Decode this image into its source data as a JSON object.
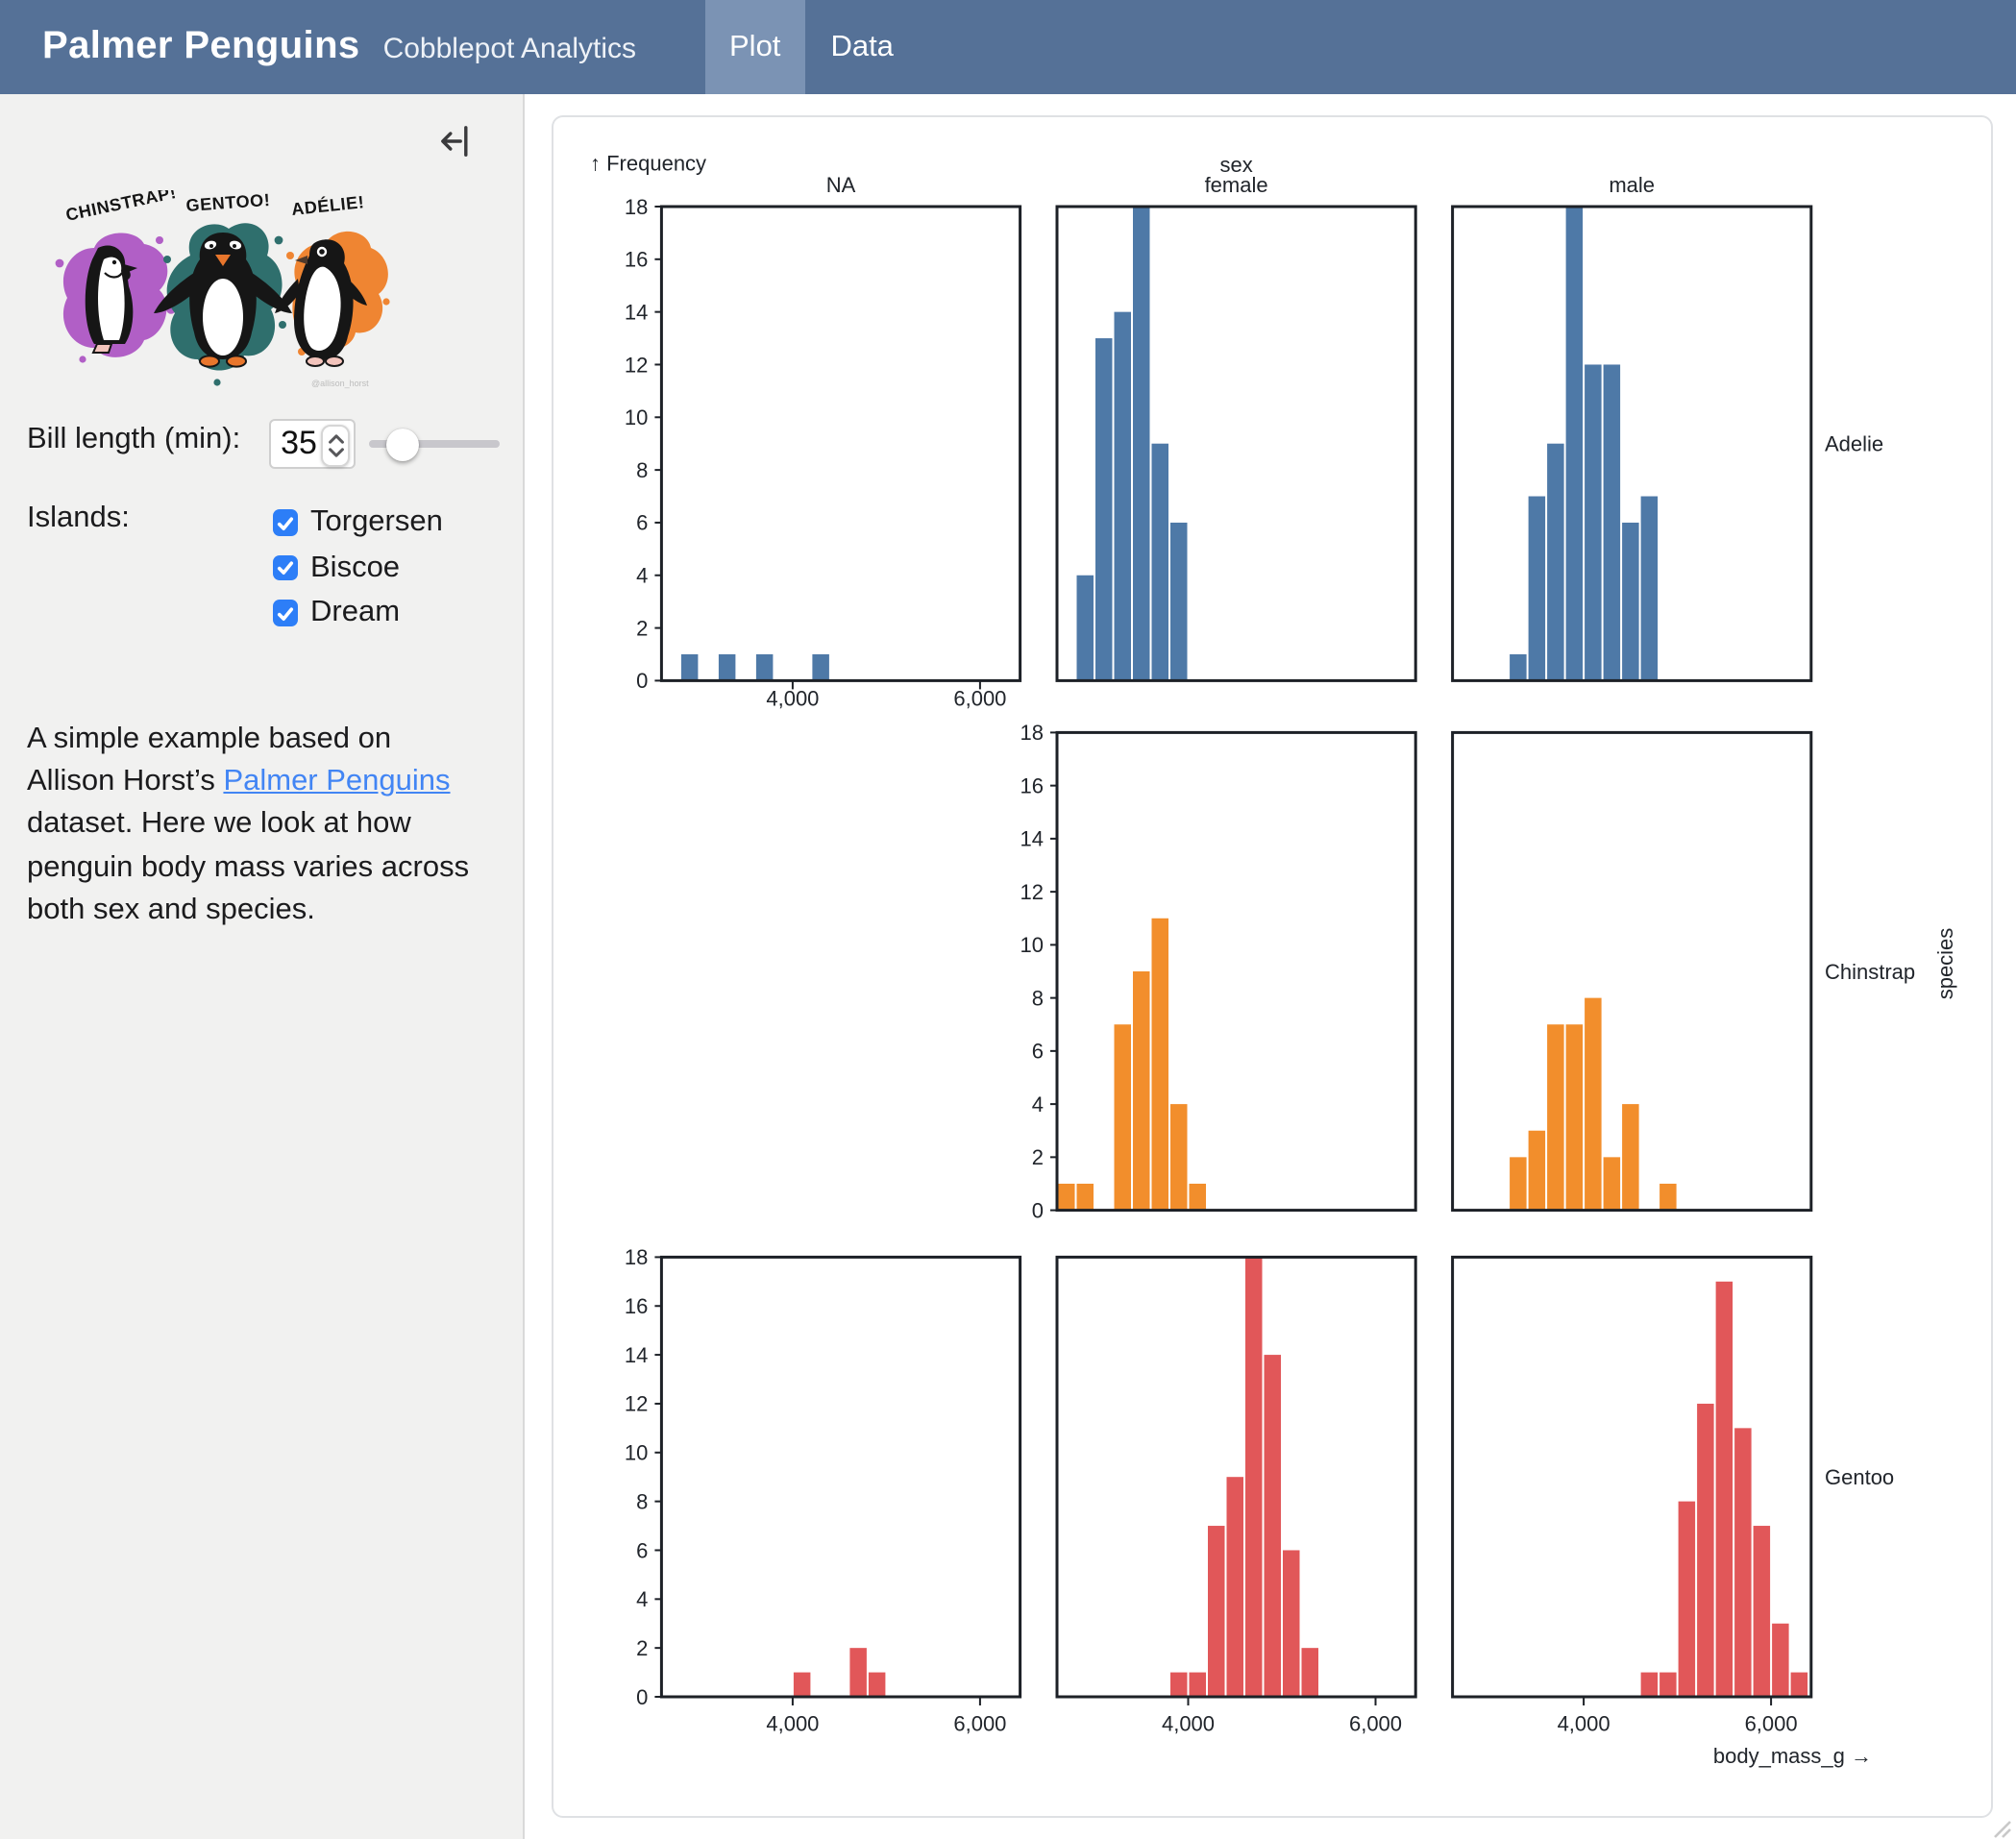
{
  "header": {
    "title": "Palmer Penguins",
    "subtitle": "Cobblepot Analytics",
    "tabs": [
      {
        "label": "Plot",
        "active": true
      },
      {
        "label": "Data",
        "active": false
      }
    ]
  },
  "sidebar": {
    "artwork_labels": [
      "CHINSTRAP!",
      "GENTOO!",
      "ADÉLIE!"
    ],
    "artwork_signature": "@allison_horst",
    "bill_length": {
      "label": "Bill length (min):",
      "value": "35"
    },
    "islands": {
      "label": "Islands:",
      "options": [
        {
          "label": "Torgersen",
          "checked": true
        },
        {
          "label": "Biscoe",
          "checked": true
        },
        {
          "label": "Dream",
          "checked": true
        }
      ]
    },
    "description": {
      "before": "A simple example based on Allison Horst’s ",
      "link": "Palmer Penguins",
      "after": " dataset. Here we look at how penguin body mass varies across both sex and species."
    }
  },
  "colors": {
    "header_bg": "#557197",
    "tab_active_bg": "#7b93b4",
    "check_blue": "#2d7ef7",
    "link_blue": "#4285f4",
    "adelie": "#4e79a7",
    "chinstrap": "#f28e2c",
    "gentoo": "#e15759"
  },
  "chart_data": {
    "type": "bar",
    "subtype": "faceted-histogram",
    "x_label": "body_mass_g →",
    "y_label": "↑ Frequency",
    "fx_label": "sex",
    "fy_label": "species",
    "columns": [
      "NA",
      "female",
      "male"
    ],
    "rows": [
      "Adelie",
      "Chinstrap",
      "Gentoo"
    ],
    "bin_width": 200,
    "x_domain": [
      2600,
      6427
    ],
    "y_domain": [
      0,
      18
    ],
    "x_ticks": [
      4000,
      6000
    ],
    "y_ticks": [
      0,
      2,
      4,
      6,
      8,
      10,
      12,
      14,
      16,
      18
    ],
    "facets": [
      {
        "species": "Adelie",
        "sex": "NA",
        "bins": {
          "2800": 1,
          "3200": 1,
          "3600": 1,
          "4200": 1
        }
      },
      {
        "species": "Adelie",
        "sex": "female",
        "bins": {
          "2800": 4,
          "3000": 13,
          "3200": 14,
          "3400": 18,
          "3600": 9,
          "3800": 6
        }
      },
      {
        "species": "Adelie",
        "sex": "male",
        "bins": {
          "3200": 1,
          "3400": 7,
          "3600": 9,
          "3800": 18,
          "4000": 12,
          "4200": 12,
          "4400": 6,
          "4600": 7
        }
      },
      {
        "species": "Chinstrap",
        "sex": "NA",
        "bins": null
      },
      {
        "species": "Chinstrap",
        "sex": "female",
        "bins": {
          "2600": 1,
          "2800": 1,
          "3200": 7,
          "3400": 9,
          "3600": 11,
          "3800": 4,
          "4000": 1
        }
      },
      {
        "species": "Chinstrap",
        "sex": "male",
        "bins": {
          "3200": 2,
          "3400": 3,
          "3600": 7,
          "3800": 7,
          "4000": 8,
          "4200": 2,
          "4400": 4,
          "4800": 1
        }
      },
      {
        "species": "Gentoo",
        "sex": "NA",
        "bins": {
          "4000": 1,
          "4600": 2,
          "4800": 1
        }
      },
      {
        "species": "Gentoo",
        "sex": "female",
        "bins": {
          "3800": 1,
          "4000": 1,
          "4200": 7,
          "4400": 9,
          "4600": 18,
          "4800": 14,
          "5000": 6,
          "5200": 2
        }
      },
      {
        "species": "Gentoo",
        "sex": "male",
        "bins": {
          "4600": 1,
          "4800": 1,
          "5000": 8,
          "5200": 12,
          "5400": 17,
          "5600": 11,
          "5800": 7,
          "6000": 3,
          "6200": 1
        }
      }
    ]
  }
}
